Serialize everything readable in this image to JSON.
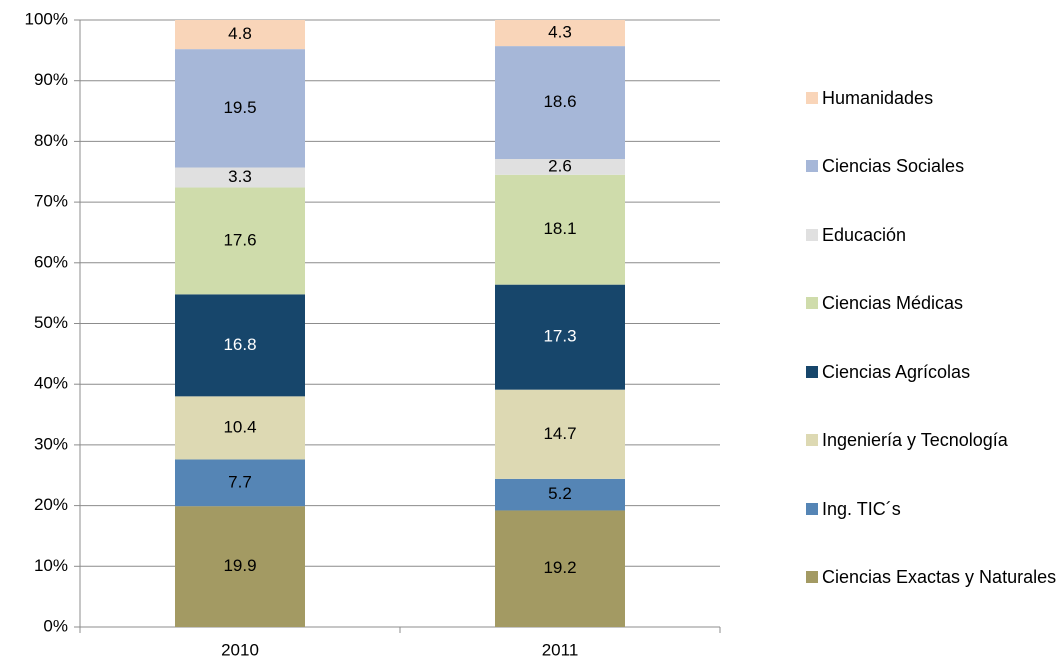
{
  "chart_data": {
    "type": "stacked_bar",
    "categories": [
      "2010",
      "2011"
    ],
    "ylim": [
      0,
      100
    ],
    "yticks": [
      {
        "value": 0,
        "label": "0%"
      },
      {
        "value": 10,
        "label": "10%"
      },
      {
        "value": 20,
        "label": "20%"
      },
      {
        "value": 30,
        "label": "30%"
      },
      {
        "value": 40,
        "label": "40%"
      },
      {
        "value": 50,
        "label": "50%"
      },
      {
        "value": 60,
        "label": "60%"
      },
      {
        "value": 70,
        "label": "70%"
      },
      {
        "value": 80,
        "label": "80%"
      },
      {
        "value": 90,
        "label": "90%"
      },
      {
        "value": 100,
        "label": "100%"
      }
    ],
    "grid": true,
    "legend": "right",
    "series": [
      {
        "name": "Ciencias Exactas y Naturales",
        "color": "#a39a63",
        "values": [
          19.9,
          19.2
        ]
      },
      {
        "name": "Ing. TIC´s",
        "color": "#5585b5",
        "values": [
          7.7,
          5.2
        ]
      },
      {
        "name": "Ingeniería y Tecnología",
        "color": "#ddd9b3",
        "values": [
          10.4,
          14.7
        ]
      },
      {
        "name": "Ciencias Agrícolas",
        "color": "#17466b",
        "values": [
          16.8,
          17.3
        ]
      },
      {
        "name": "Ciencias Médicas",
        "color": "#cfdcab",
        "values": [
          17.6,
          18.1
        ]
      },
      {
        "name": "Educación",
        "color": "#e0e0e0",
        "values": [
          3.3,
          2.6
        ]
      },
      {
        "name": "Ciencias Sociales",
        "color": "#a6b7d8",
        "values": [
          19.5,
          18.6
        ]
      },
      {
        "name": "Humanidades",
        "color": "#f9d5b9",
        "values": [
          4.8,
          4.3
        ]
      }
    ]
  }
}
